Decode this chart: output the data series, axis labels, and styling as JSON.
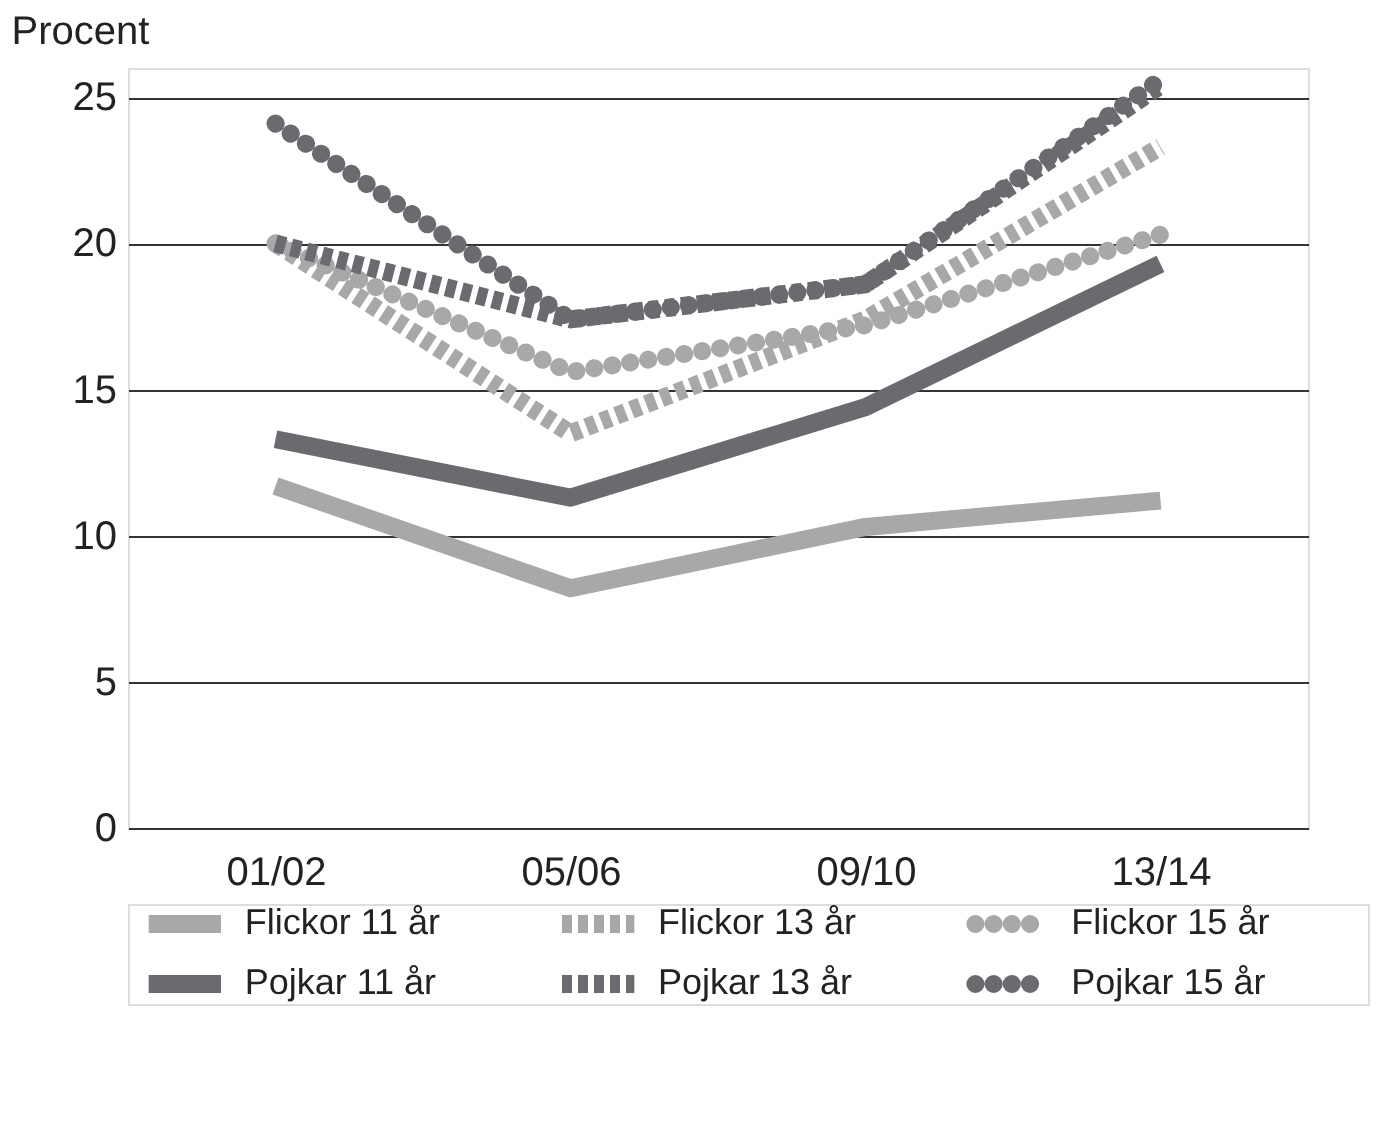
{
  "chart_data": {
    "type": "line",
    "ylabel": "Procent",
    "categories": [
      "01/02",
      "05/06",
      "09/10",
      "13/14"
    ],
    "series": [
      {
        "name": "Flickor 11 år",
        "color": "#a7a8aa",
        "line_style": "solid",
        "values": [
          11.7,
          8.2,
          10.3,
          11.2
        ]
      },
      {
        "name": "Flickor 13 år",
        "color": "#a7a8aa",
        "line_style": "dashed",
        "values": [
          20.0,
          13.5,
          17.4,
          23.3
        ]
      },
      {
        "name": "Flickor 15 år",
        "color": "#a7a8aa",
        "line_style": "dotted",
        "values": [
          20.0,
          15.6,
          17.2,
          20.3
        ]
      },
      {
        "name": "Pojkar 11 år",
        "color": "#6a6b6e",
        "line_style": "solid",
        "values": [
          13.3,
          11.3,
          14.4,
          19.3
        ]
      },
      {
        "name": "Pojkar 13 år",
        "color": "#6a6b6e",
        "line_style": "dashed",
        "values": [
          20.0,
          17.4,
          18.6,
          25.4
        ]
      },
      {
        "name": "Pojkar 15 år",
        "color": "#6a6b6e",
        "line_style": "dotted",
        "values": [
          24.1,
          17.4,
          18.6,
          25.6
        ]
      }
    ],
    "ylim": [
      0,
      26
    ],
    "yticks": [
      0,
      5,
      10,
      15,
      20,
      25
    ],
    "grid": "y",
    "legend": "bottom",
    "marker": "none"
  }
}
